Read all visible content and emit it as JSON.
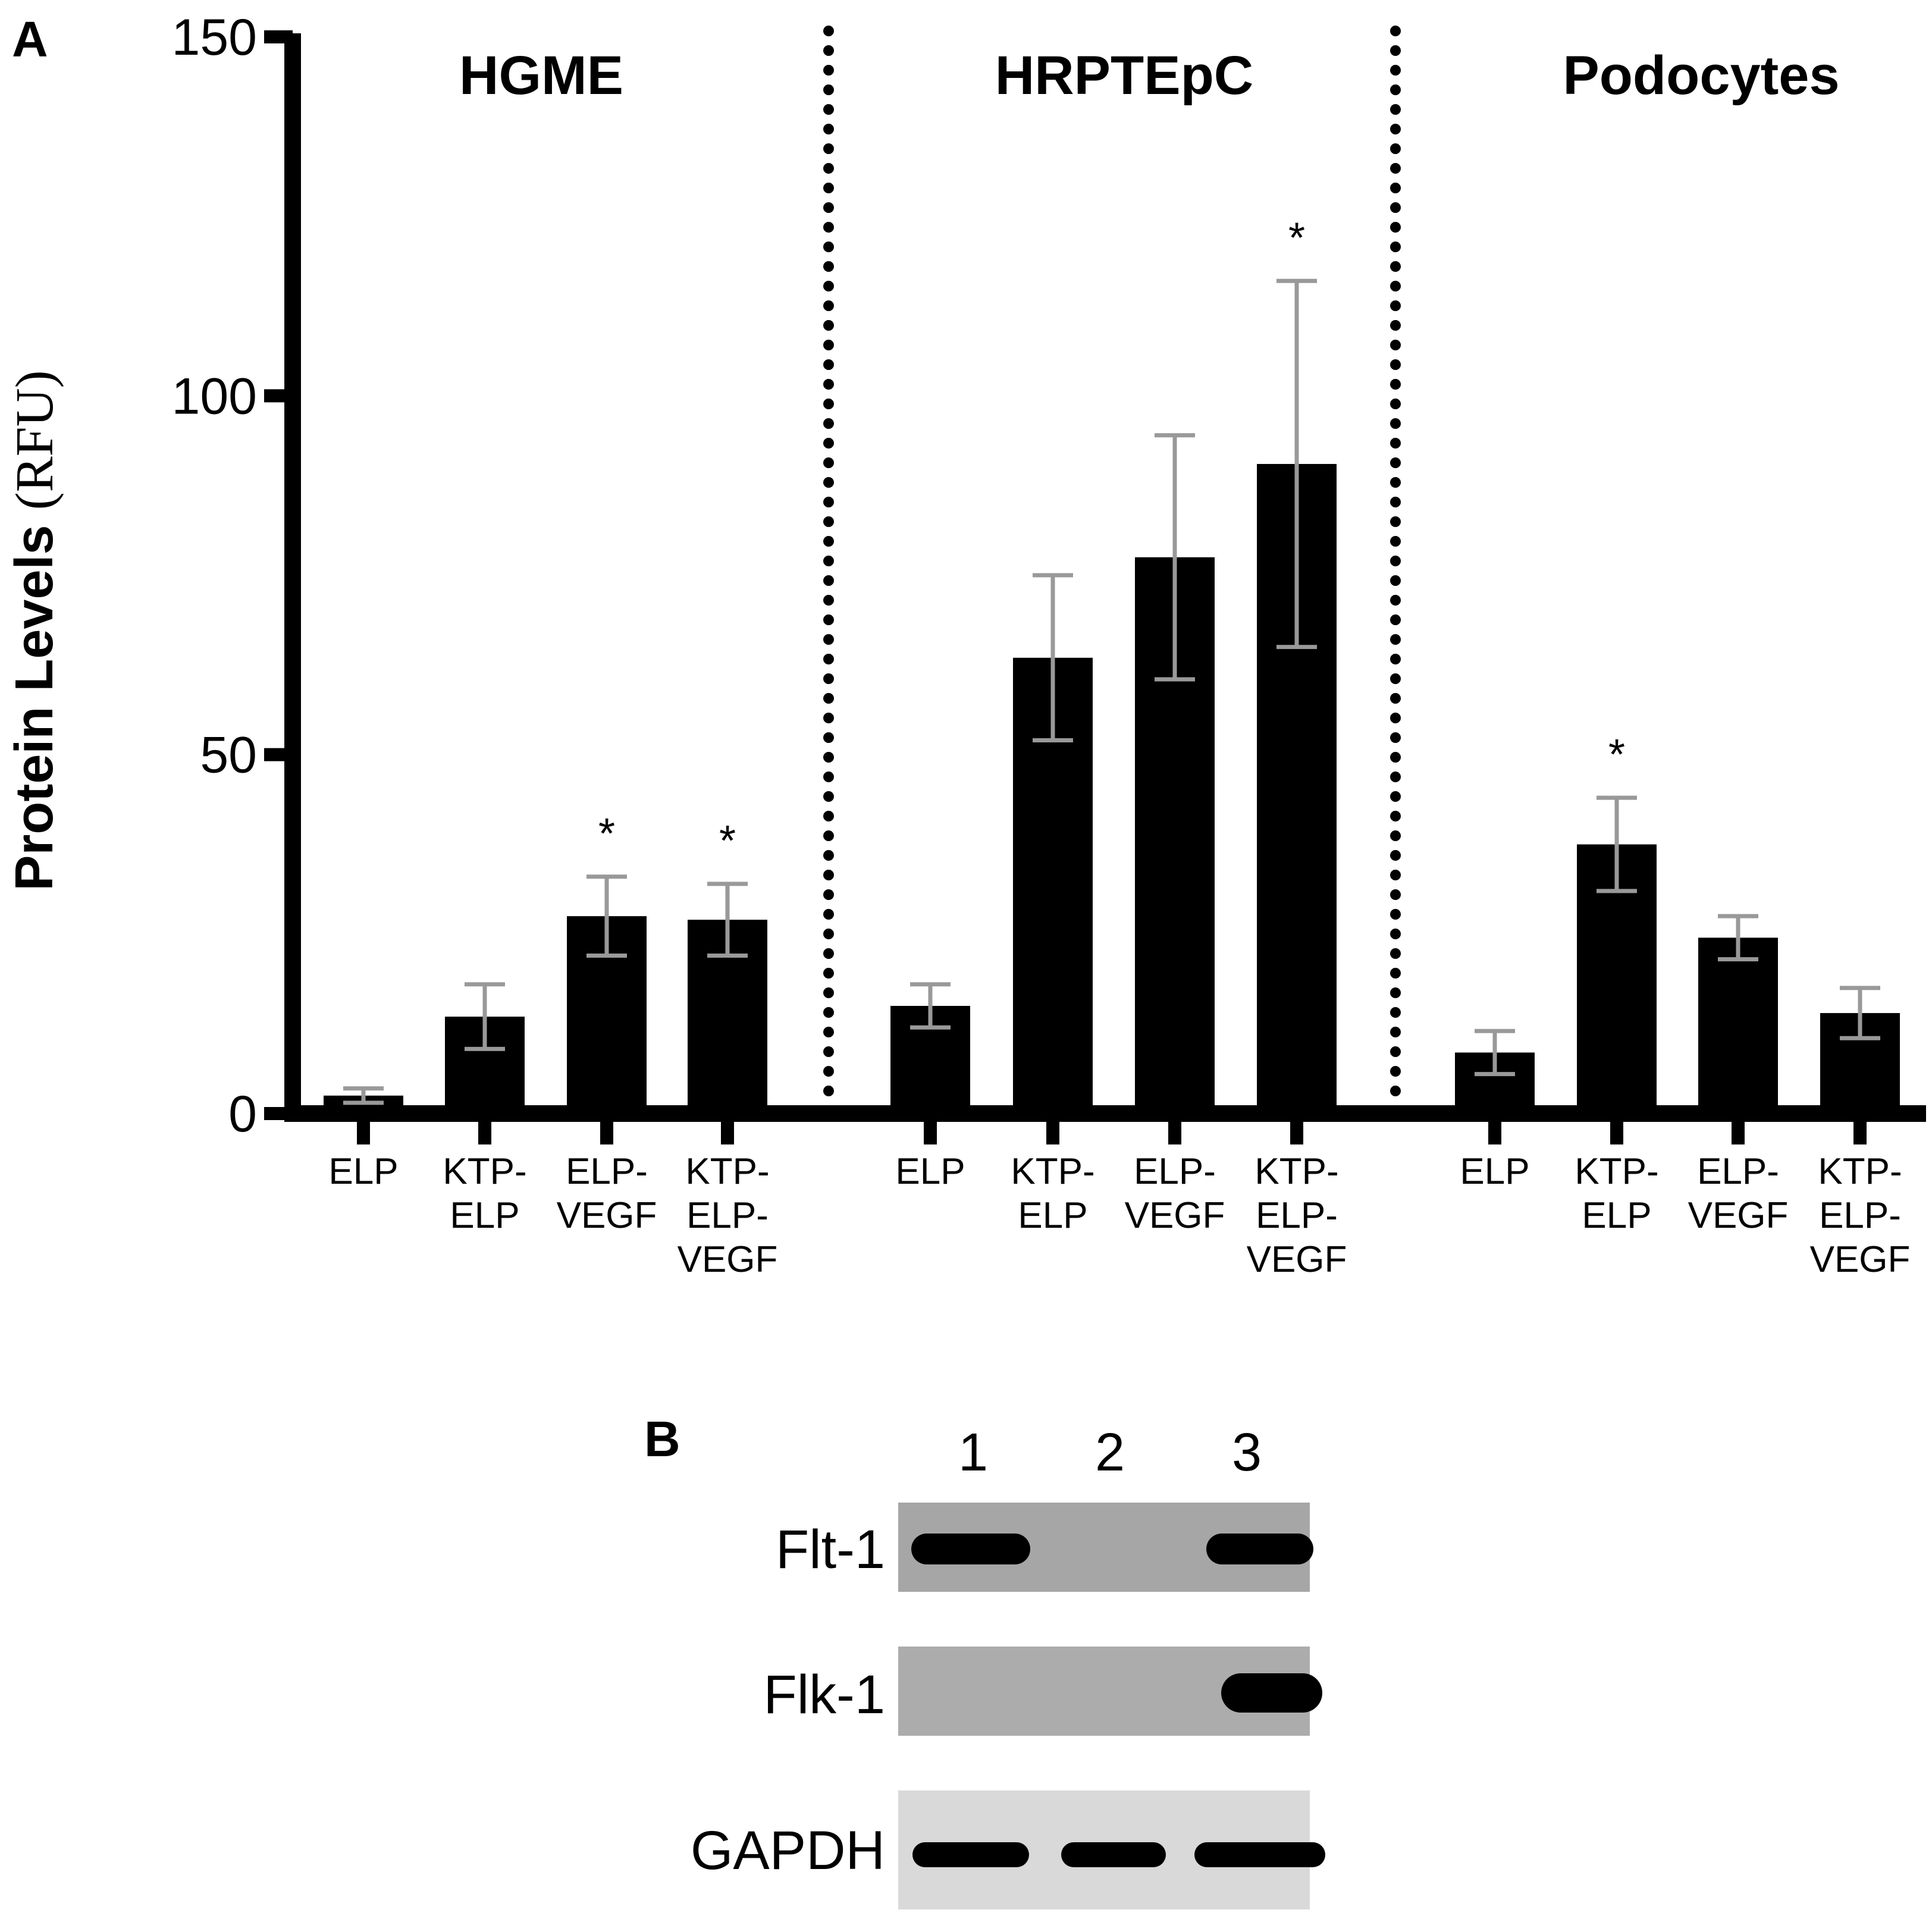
{
  "panel_labels": {
    "a": "A",
    "b": "B"
  },
  "chart_data": {
    "type": "bar",
    "ylabel_main": "Protein Levels",
    "ylabel_unit": "(RFU)",
    "ylim": [
      0,
      150
    ],
    "yticks": [
      0,
      50,
      100,
      150
    ],
    "grid": false,
    "legend": "none",
    "groups": [
      {
        "label": "HGME",
        "categories": [
          [
            "ELP"
          ],
          [
            "KTP-",
            "ELP"
          ],
          [
            "ELP-",
            "VEGF"
          ],
          [
            "KTP-",
            "ELP-",
            "VEGF"
          ]
        ],
        "values": [
          2.5,
          13.5,
          27.5,
          27
        ],
        "errors": [
          1,
          4.5,
          5.5,
          5
        ],
        "significant": [
          false,
          false,
          true,
          true
        ]
      },
      {
        "label": "HRPTEpC",
        "categories": [
          [
            "ELP"
          ],
          [
            "KTP-",
            "ELP"
          ],
          [
            "ELP-",
            "VEGF"
          ],
          [
            "KTP-",
            "ELP-",
            "VEGF"
          ]
        ],
        "values": [
          15,
          63.5,
          77.5,
          90.5
        ],
        "errors": [
          3,
          11.5,
          17,
          25.5
        ],
        "significant": [
          false,
          false,
          false,
          true
        ]
      },
      {
        "label": "Podocytes",
        "categories": [
          [
            "ELP"
          ],
          [
            "KTP-",
            "ELP"
          ],
          [
            "ELP-",
            "VEGF"
          ],
          [
            "KTP-",
            "ELP-",
            "VEGF"
          ]
        ],
        "values": [
          8.5,
          37.5,
          24.5,
          14
        ],
        "errors": [
          3,
          6.5,
          3,
          3.5
        ],
        "significant": [
          false,
          true,
          false,
          false
        ]
      }
    ],
    "significance_marker": "*",
    "colors": {
      "bar": "#000000",
      "error_bar": "#999999"
    }
  },
  "blot": {
    "lanes": [
      "1",
      "2",
      "3"
    ],
    "rows": [
      {
        "label": "Flt-1",
        "bands": [
          1,
          0,
          1
        ]
      },
      {
        "label": "Flk-1",
        "bands": [
          0,
          0,
          1
        ]
      },
      {
        "label": "GAPDH",
        "bands": [
          1,
          1,
          1
        ]
      }
    ]
  }
}
